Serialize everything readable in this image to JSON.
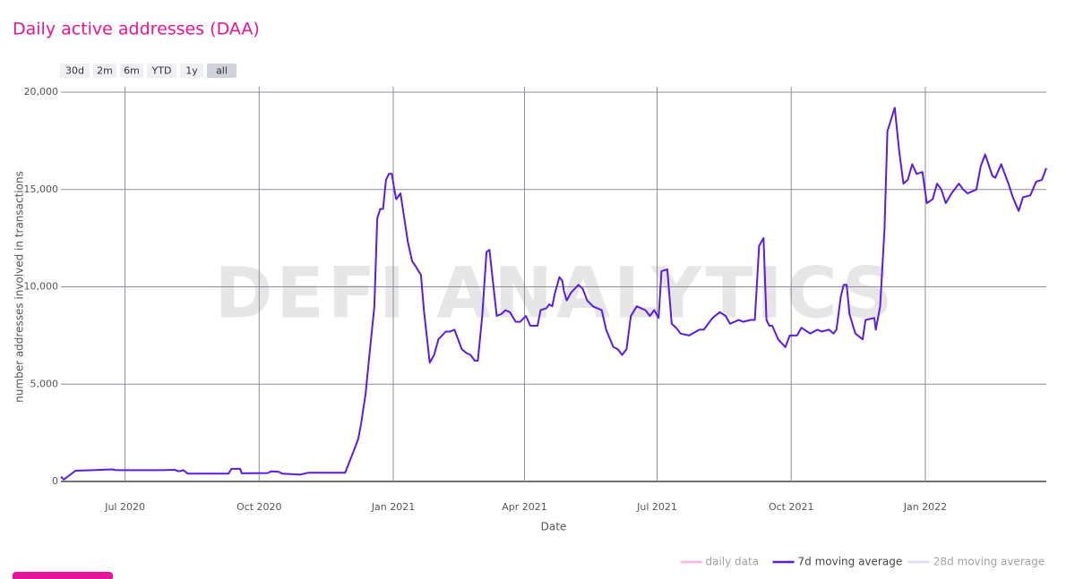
{
  "chart_data": {
    "type": "line",
    "title": "Daily active addresses (DAA)",
    "range_buttons": [
      "30d",
      "2m",
      "6m",
      "YTD",
      "1y",
      "all"
    ],
    "active_button": "all",
    "watermark": "DEFI ANALYTICS",
    "x_label": "Date",
    "y_label": "number addresses involved in transactions",
    "xlim": [
      -44,
      632
    ],
    "xticks": [
      {
        "value": 0,
        "label": "Jul 2020"
      },
      {
        "value": 92,
        "label": "Oct 2020"
      },
      {
        "value": 184,
        "label": "Jan 2021"
      },
      {
        "value": 274,
        "label": "Apr 2021"
      },
      {
        "value": 365,
        "label": "Jul 2021"
      },
      {
        "value": 457,
        "label": "Oct 2021"
      },
      {
        "value": 549,
        "label": "Jan 2022"
      }
    ],
    "ylim": [
      0,
      20000
    ],
    "yticks": [
      0,
      {
        "value": 5000,
        "label": "5,000"
      },
      {
        "value": 10000,
        "label": "10,000"
      },
      {
        "value": 15000,
        "label": "15,000"
      },
      {
        "value": 20000,
        "label": "20,000"
      }
    ],
    "grid": true,
    "legend_position": "bottom-right",
    "legend": [
      {
        "name": "daily data",
        "color": "#ff6ec7",
        "visible": false
      },
      {
        "name": "7d moving average",
        "color": "#5a1be6",
        "visible": true
      },
      {
        "name": "28d moving average",
        "color": "#c9b3ff",
        "visible": false
      }
    ],
    "series": [
      {
        "name": "7d moving average",
        "color": "#5a1be6",
        "x": [
          -44,
          -42,
          -34,
          -22,
          -9,
          -6,
          25,
          34,
          37,
          40,
          43,
          71,
          73,
          79,
          80,
          98,
          100,
          105,
          108,
          120,
          126,
          135,
          151,
          157,
          160,
          162,
          165,
          167,
          171,
          173,
          175,
          177,
          179,
          181,
          183,
          185,
          186,
          189,
          192,
          194,
          197,
          199,
          203,
          205,
          209,
          212,
          215,
          220,
          223,
          226,
          231,
          234,
          237,
          240,
          242,
          245,
          248,
          250,
          252,
          255,
          258,
          261,
          264,
          268,
          271,
          275,
          278,
          283,
          285,
          289,
          291,
          293,
          295,
          298,
          300,
          301,
          303,
          306,
          311,
          314,
          317,
          321,
          327,
          330,
          335,
          338,
          341,
          344,
          347,
          351,
          354,
          357,
          360,
          363,
          366,
          368,
          372,
          375,
          378,
          381,
          387,
          394,
          397,
          403,
          408,
          412,
          415,
          421,
          424,
          429,
          432,
          435,
          438,
          440,
          442,
          444,
          448,
          453,
          456,
          461,
          464,
          470,
          475,
          478,
          483,
          486,
          488,
          491,
          493,
          495,
          497,
          501,
          506,
          508,
          514,
          515,
          518,
          521,
          523,
          528,
          531,
          534,
          537,
          540,
          543,
          547,
          550,
          554,
          557,
          560,
          563,
          567,
          572,
          575,
          578,
          584,
          587,
          590,
          595,
          597,
          601,
          606,
          609,
          613,
          616,
          621,
          625,
          629,
          632
        ],
        "values": [
          250,
          100,
          550,
          580,
          620,
          580,
          580,
          600,
          520,
          580,
          400,
          400,
          650,
          650,
          420,
          430,
          520,
          500,
          400,
          350,
          450,
          450,
          450,
          1600,
          2200,
          3000,
          4500,
          6000,
          9000,
          13500,
          14000,
          14000,
          15500,
          15800,
          15800,
          14900,
          14500,
          14800,
          13300,
          12300,
          11300,
          11100,
          10600,
          8800,
          6100,
          6500,
          7300,
          7700,
          7700,
          7800,
          6800,
          6600,
          6500,
          6200,
          6200,
          8500,
          11800,
          11900,
          10500,
          8500,
          8600,
          8800,
          8700,
          8200,
          8200,
          8500,
          8000,
          8000,
          8800,
          8900,
          9100,
          9000,
          9700,
          10500,
          10300,
          9800,
          9300,
          9700,
          10100,
          9900,
          9300,
          9000,
          8800,
          7800,
          6900,
          6800,
          6500,
          6800,
          8500,
          9000,
          8900,
          8800,
          8500,
          8800,
          8400,
          10800,
          10900,
          8100,
          7900,
          7600,
          7500,
          7800,
          7800,
          8400,
          8700,
          8500,
          8100,
          8300,
          8200,
          8300,
          8300,
          12100,
          12500,
          8300,
          8000,
          8000,
          7300,
          6900,
          7500,
          7500,
          7900,
          7600,
          7800,
          7700,
          7800,
          7600,
          7800,
          9500,
          10100,
          10100,
          8600,
          7600,
          7300,
          8300,
          8400,
          7800,
          9000,
          13000,
          18000,
          19200,
          17000,
          15300,
          15500,
          16300,
          15800,
          15900,
          14300,
          14500,
          15300,
          15000,
          14300,
          14800,
          15300,
          15000,
          14800,
          15000,
          16200,
          16800,
          15700,
          15600,
          16300,
          15300,
          14600,
          13900,
          14600,
          14700,
          15400,
          15500,
          16100
        ]
      }
    ]
  }
}
